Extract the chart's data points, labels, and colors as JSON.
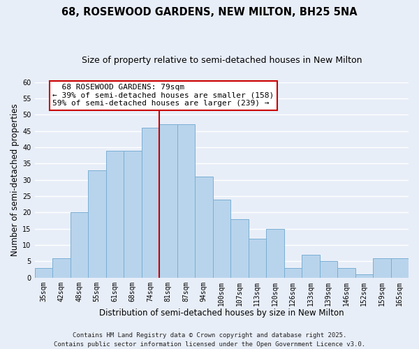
{
  "title": "68, ROSEWOOD GARDENS, NEW MILTON, BH25 5NA",
  "subtitle": "Size of property relative to semi-detached houses in New Milton",
  "xlabel": "Distribution of semi-detached houses by size in New Milton",
  "ylabel": "Number of semi-detached properties",
  "bar_labels": [
    "35sqm",
    "42sqm",
    "48sqm",
    "55sqm",
    "61sqm",
    "68sqm",
    "74sqm",
    "81sqm",
    "87sqm",
    "94sqm",
    "100sqm",
    "107sqm",
    "113sqm",
    "120sqm",
    "126sqm",
    "133sqm",
    "139sqm",
    "146sqm",
    "152sqm",
    "159sqm",
    "165sqm"
  ],
  "bar_values": [
    3,
    6,
    20,
    33,
    39,
    39,
    46,
    47,
    47,
    31,
    24,
    18,
    12,
    15,
    3,
    7,
    5,
    3,
    1,
    6,
    6
  ],
  "bar_color": "#b8d4ec",
  "bar_edge_color": "#7aafd4",
  "vline_x": 7.0,
  "vline_color": "#cc0000",
  "ylim": [
    0,
    60
  ],
  "yticks": [
    0,
    5,
    10,
    15,
    20,
    25,
    30,
    35,
    40,
    45,
    50,
    55,
    60
  ],
  "annotation_title": "68 ROSEWOOD GARDENS: 79sqm",
  "annotation_line1": "← 39% of semi-detached houses are smaller (158)",
  "annotation_line2": "59% of semi-detached houses are larger (239) →",
  "footer_line1": "Contains HM Land Registry data © Crown copyright and database right 2025.",
  "footer_line2": "Contains public sector information licensed under the Open Government Licence v3.0.",
  "background_color": "#e8eef8",
  "grid_color": "#ffffff",
  "title_fontsize": 10.5,
  "subtitle_fontsize": 9,
  "axis_label_fontsize": 8.5,
  "tick_fontsize": 7,
  "annotation_fontsize": 8,
  "footer_fontsize": 6.5
}
